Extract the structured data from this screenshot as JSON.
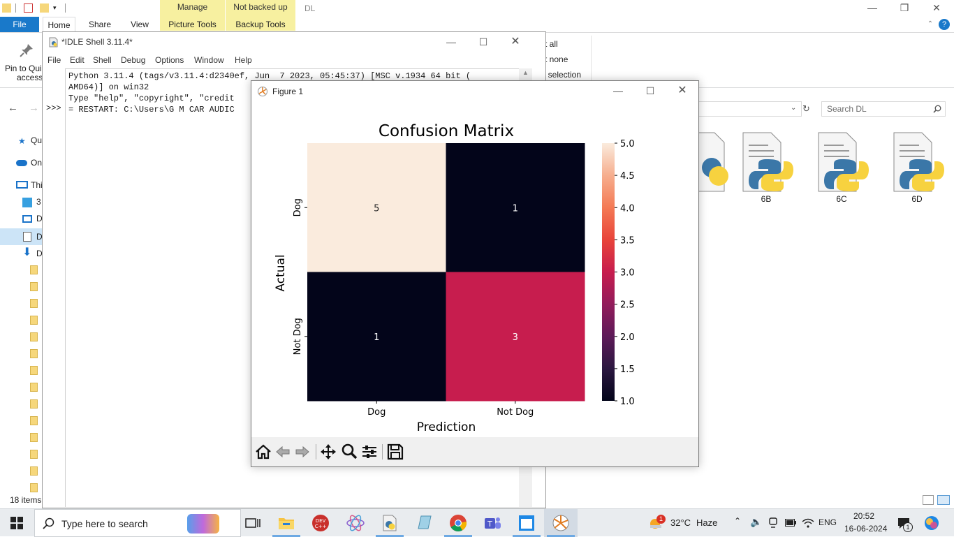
{
  "explorer": {
    "window_title": "DL",
    "contextual_tabs": [
      {
        "group": "Manage",
        "tab": "Picture Tools"
      },
      {
        "group": "Not backed up",
        "tab": "Backup Tools"
      }
    ],
    "tabs": [
      "File",
      "Home",
      "Share",
      "View"
    ],
    "ribbon": {
      "pin_label_1": "Pin to Qui",
      "pin_label_2": "access",
      "select_all": "ct all",
      "select_none": "ct none",
      "invert_selection": "rt selection"
    },
    "search_placeholder": "Search DL",
    "nav_items": [
      "Qu",
      "On",
      "Thi",
      "3",
      "D",
      "D",
      "D"
    ],
    "files": [
      "6B",
      "6C",
      "6D"
    ],
    "status_count": "18 items"
  },
  "idle": {
    "title": "*IDLE Shell 3.11.4*",
    "menu": [
      "File",
      "Edit",
      "Shell",
      "Debug",
      "Options",
      "Window",
      "Help"
    ],
    "prompt": ">>>",
    "lines": [
      "Python 3.11.4 (tags/v3.11.4:d2340ef, Jun  7 2023, 05:45:37) [MSC v.1934 64 bit (",
      "AMD64)] on win32",
      "Type \"help\", \"copyright\", \"credit",
      "",
      "= RESTART: C:\\Users\\G M CAR AUDIC"
    ]
  },
  "figure": {
    "title": "Figure 1",
    "toolbar": [
      "home-icon",
      "back-icon",
      "forward-icon",
      "pan-icon",
      "zoom-icon",
      "configure-icon",
      "save-icon"
    ]
  },
  "chart_data": {
    "type": "heatmap",
    "title": "Confusion Matrix",
    "xlabel": "Prediction",
    "ylabel": "Actual",
    "x_categories": [
      "Dog",
      "Not Dog"
    ],
    "y_categories": [
      "Dog",
      "Not Dog"
    ],
    "values": [
      [
        5,
        1
      ],
      [
        1,
        3
      ]
    ],
    "colorbar": {
      "min": 1.0,
      "max": 5.0,
      "ticks": [
        "1.0",
        "1.5",
        "2.0",
        "2.5",
        "3.0",
        "3.5",
        "4.0",
        "4.5",
        "5.0"
      ]
    },
    "colormap": "rocket"
  },
  "taskbar": {
    "search_placeholder": "Type here to search",
    "weather_temp": "32°C",
    "weather_desc": "Haze",
    "weather_badge": "1",
    "language": "ENG",
    "time": "20:52",
    "date": "16-06-2024",
    "notification_count": "1",
    "accent": "#6da9e3"
  }
}
